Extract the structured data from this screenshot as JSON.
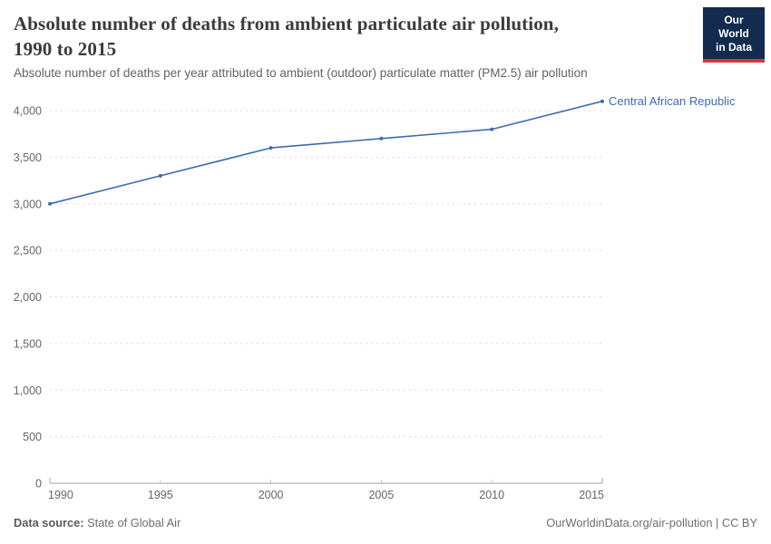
{
  "header": {
    "title": "Absolute number of deaths from ambient particulate air pollution, 1990 to 2015",
    "title_line1": "Absolute number of deaths from ambient particulate air pollution,",
    "title_line2": "1990 to 2015",
    "subtitle": "Absolute number of deaths per year attributed to ambient (outdoor) particulate matter (PM2.5) air pollution"
  },
  "logo": {
    "line1": "Our World",
    "line2": "in Data",
    "bg_color": "#122b4e",
    "stripe_color": "#cc3b31"
  },
  "footer": {
    "source_label": "Data source:",
    "source_value": "State of Global Air",
    "citation": "OurWorldinData.org/air-pollution | CC BY"
  },
  "chart_data": {
    "type": "line",
    "title": "Absolute number of deaths from ambient particulate air pollution, 1990 to 2015",
    "subtitle": "Absolute number of deaths per year attributed to ambient (outdoor) particulate matter (PM2.5) air pollution",
    "x": [
      1990,
      1995,
      2000,
      2005,
      2010,
      2015
    ],
    "series": [
      {
        "name": "Central African Republic",
        "color": "#3d6bb3",
        "values": [
          3000,
          3300,
          3600,
          3700,
          3800,
          4100
        ]
      }
    ],
    "xlabel": "",
    "ylabel": "",
    "xlim": [
      1990,
      2015
    ],
    "ylim": [
      0,
      4000
    ],
    "x_ticks": [
      1990,
      1995,
      2000,
      2005,
      2010,
      2015
    ],
    "y_ticks": [
      0,
      500,
      1000,
      1500,
      2000,
      2500,
      3000,
      3500,
      4000
    ],
    "grid": "horizontal-dashed",
    "legend": "end-of-line-label",
    "colors": {
      "gridline": "#dcdcdc",
      "axis": "#a3a3a3",
      "tick_text": "#666666"
    }
  }
}
